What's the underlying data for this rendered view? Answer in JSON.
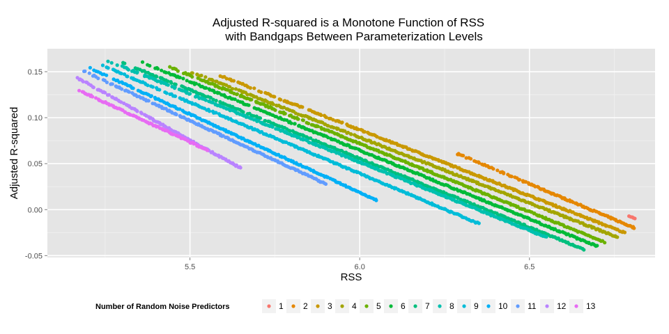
{
  "chart_data": {
    "type": "scatter",
    "title_line1": "Adjusted R-squared is a Monotone Function of RSS",
    "title_line2": "with Bandgaps Between Parameterization Levels",
    "xlabel": "RSS",
    "ylabel": "Adjusted R-squared",
    "xlim": [
      5.08,
      6.87
    ],
    "ylim": [
      -0.052,
      0.175
    ],
    "x_ticks": [
      5.5,
      6.0,
      6.5
    ],
    "x_tick_labels": [
      "5.5",
      "6.0",
      "6.5"
    ],
    "y_ticks": [
      -0.05,
      0.0,
      0.05,
      0.1,
      0.15
    ],
    "y_tick_labels": [
      "-0.05",
      "0.00",
      "0.05",
      "0.10",
      "0.15"
    ],
    "grid": true,
    "legend_title": "Number of Random Noise Predictors",
    "legend_position": "bottom",
    "series": [
      {
        "name": "1",
        "color": "#F8766D",
        "x_range": [
          6.79,
          6.81
        ],
        "y_range": [
          -0.006,
          -0.01
        ]
      },
      {
        "name": "2",
        "color": "#E58700",
        "x_range": [
          6.28,
          6.81
        ],
        "y_range": [
          0.062,
          -0.02
        ]
      },
      {
        "name": "3",
        "color": "#C99800",
        "x_range": [
          5.58,
          6.78
        ],
        "y_range": [
          0.147,
          -0.025
        ]
      },
      {
        "name": "4",
        "color": "#A3A500",
        "x_range": [
          5.5,
          6.76
        ],
        "y_range": [
          0.15,
          -0.03
        ]
      },
      {
        "name": "5",
        "color": "#6BB100",
        "x_range": [
          5.44,
          6.72
        ],
        "y_range": [
          0.155,
          -0.035
        ]
      },
      {
        "name": "6",
        "color": "#00BA38",
        "x_range": [
          5.36,
          6.7
        ],
        "y_range": [
          0.16,
          -0.04
        ]
      },
      {
        "name": "7",
        "color": "#00BF7D",
        "x_range": [
          5.3,
          6.66
        ],
        "y_range": [
          0.16,
          -0.043
        ]
      },
      {
        "name": "8",
        "color": "#00C0AF",
        "x_range": [
          5.25,
          6.55
        ],
        "y_range": [
          0.163,
          -0.03
        ]
      },
      {
        "name": "9",
        "color": "#00BCD8",
        "x_range": [
          5.22,
          6.35
        ],
        "y_range": [
          0.16,
          -0.015
        ]
      },
      {
        "name": "10",
        "color": "#00B0F6",
        "x_range": [
          5.2,
          6.05
        ],
        "y_range": [
          0.155,
          0.01
        ]
      },
      {
        "name": "11",
        "color": "#619CFF",
        "x_range": [
          5.18,
          5.9
        ],
        "y_range": [
          0.152,
          0.028
        ]
      },
      {
        "name": "12",
        "color": "#B983FF",
        "x_range": [
          5.17,
          5.65
        ],
        "y_range": [
          0.143,
          0.045
        ]
      },
      {
        "name": "13",
        "color": "#E76BF3",
        "x_range": [
          5.16,
          5.55
        ],
        "y_range": [
          0.132,
          0.065
        ]
      }
    ]
  }
}
